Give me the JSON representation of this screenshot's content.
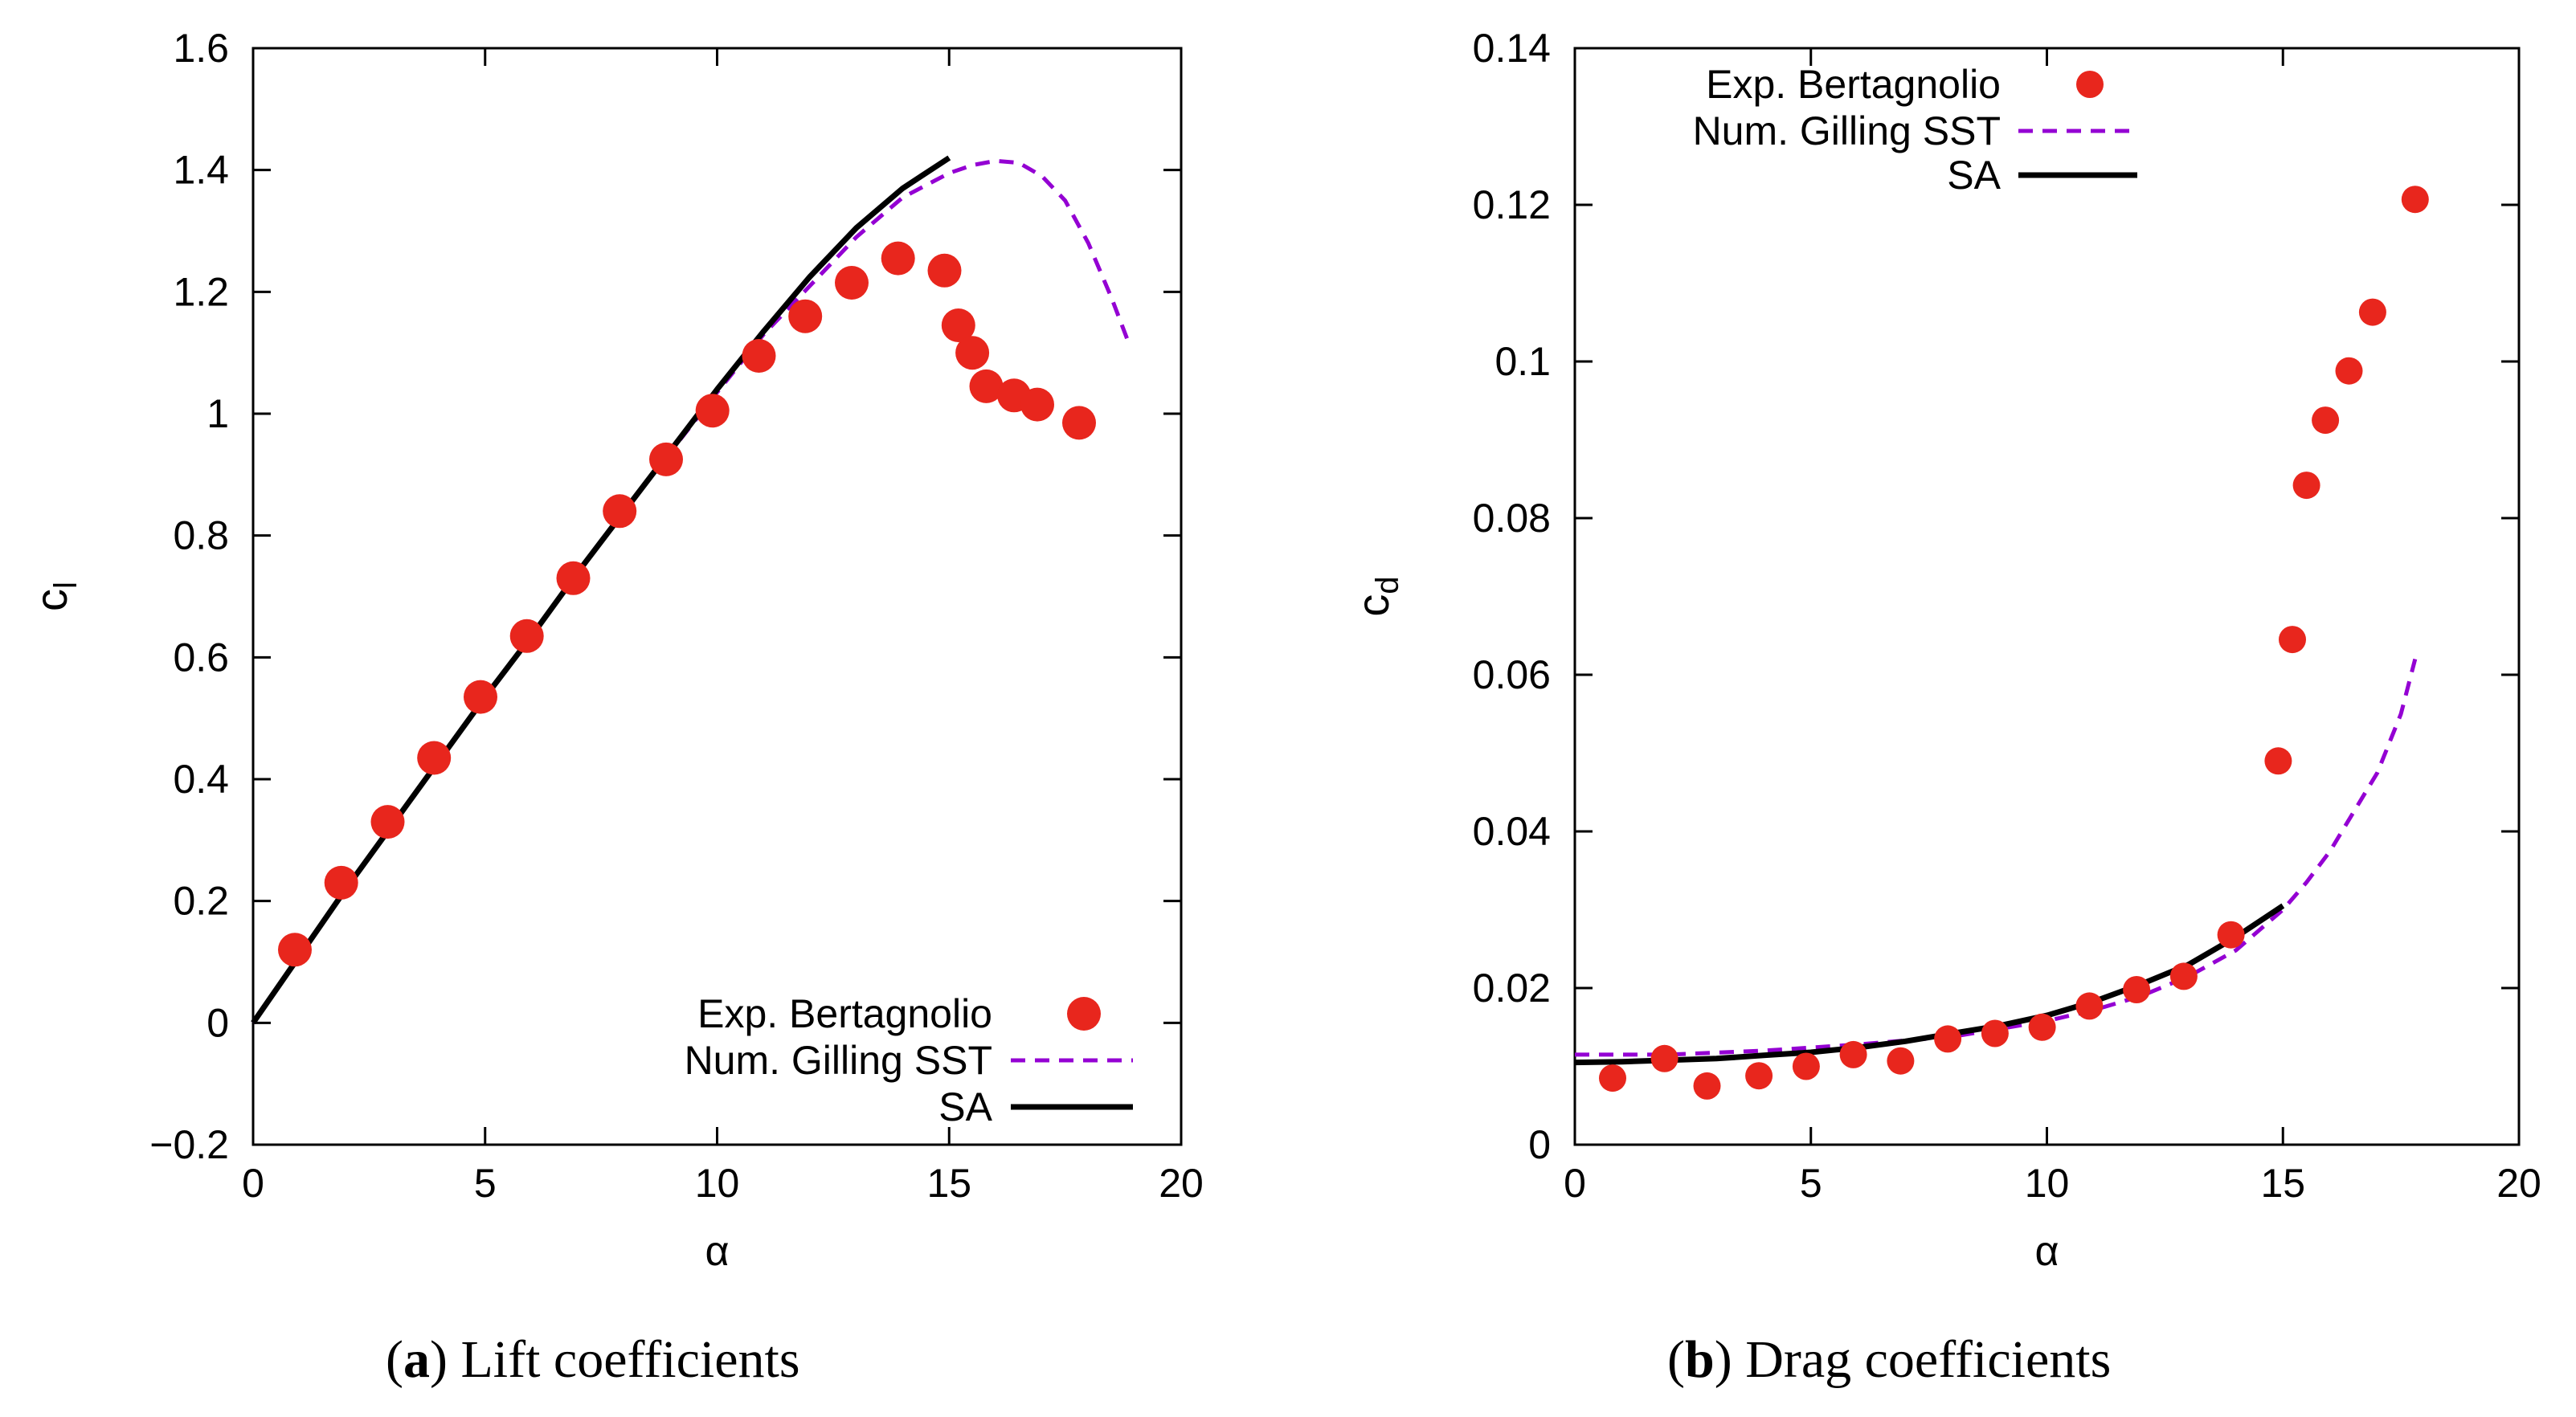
{
  "colors": {
    "exp": "#e8261d",
    "gilling": "#9400d3",
    "sa": "#000000"
  },
  "captions": {
    "a_label": "a",
    "a_text": " Lift coefficients",
    "b_label": "b",
    "b_text": " Drag coefficients"
  },
  "chart_data": [
    {
      "id": "lift",
      "type": "scatter",
      "title": "",
      "xlabel": "α",
      "ylabel": "c",
      "ylabel_sub": "l",
      "xlim": [
        0,
        20
      ],
      "ylim": [
        -0.2,
        1.6
      ],
      "xticks": [
        0,
        5,
        10,
        15,
        20
      ],
      "yticks": [
        -0.2,
        0,
        0.2,
        0.4,
        0.6,
        0.8,
        1,
        1.2,
        1.4,
        1.6
      ],
      "xtick_labels": [
        "0",
        "5",
        "10",
        "15",
        "20"
      ],
      "ytick_labels": [
        "−0.2",
        "0",
        "0.2",
        "0.4",
        "0.6",
        "0.8",
        "1",
        "1.2",
        "1.4",
        "1.6"
      ],
      "legend_position": "bottom-right",
      "legend": [
        "Exp. Bertagnolio",
        "Num. Gilling SST",
        "SA"
      ],
      "series": [
        {
          "name": "Exp. Bertagnolio",
          "style": "markers",
          "x": [
            0.9,
            1.9,
            2.9,
            3.9,
            4.9,
            5.9,
            6.9,
            7.9,
            8.9,
            9.9,
            10.9,
            11.9,
            12.9,
            13.9,
            14.9,
            15.2,
            15.5,
            15.8,
            16.4,
            16.9,
            17.8
          ],
          "y": [
            0.12,
            0.23,
            0.33,
            0.435,
            0.535,
            0.635,
            0.73,
            0.84,
            0.925,
            1.005,
            1.095,
            1.16,
            1.215,
            1.255,
            1.235,
            1.145,
            1.1,
            1.045,
            1.03,
            1.015,
            0.985
          ]
        },
        {
          "name": "Num. Gilling SST",
          "style": "dashed",
          "x": [
            0,
            2,
            4,
            6,
            8,
            10,
            11,
            12,
            13,
            14,
            15,
            15.5,
            16,
            16.5,
            17,
            17.5,
            18,
            18.5,
            18.9
          ],
          "y": [
            0,
            0.22,
            0.43,
            0.635,
            0.84,
            1.035,
            1.13,
            1.21,
            1.29,
            1.355,
            1.395,
            1.408,
            1.415,
            1.412,
            1.39,
            1.35,
            1.28,
            1.19,
            1.11
          ]
        },
        {
          "name": "SA",
          "style": "solid",
          "x": [
            0,
            1,
            2,
            3,
            4,
            5,
            6,
            7,
            8,
            9,
            10,
            11,
            12,
            13,
            14,
            15
          ],
          "y": [
            0,
            0.11,
            0.22,
            0.325,
            0.43,
            0.535,
            0.635,
            0.74,
            0.84,
            0.94,
            1.04,
            1.135,
            1.225,
            1.305,
            1.37,
            1.42
          ]
        }
      ]
    },
    {
      "id": "drag",
      "type": "scatter",
      "title": "",
      "xlabel": "α",
      "ylabel": "c",
      "ylabel_sub": "d",
      "xlim": [
        0,
        20
      ],
      "ylim": [
        0,
        0.14
      ],
      "xticks": [
        0,
        5,
        10,
        15,
        20
      ],
      "yticks": [
        0,
        0.02,
        0.04,
        0.06,
        0.08,
        0.1,
        0.12,
        0.14
      ],
      "xtick_labels": [
        "0",
        "5",
        "10",
        "15",
        "20"
      ],
      "ytick_labels": [
        "0",
        "0.02",
        "0.04",
        "0.06",
        "0.08",
        "0.1",
        "0.12",
        "0.14"
      ],
      "legend_position": "top-left",
      "legend": [
        "Exp. Bertagnolio",
        "Num. Gilling SST",
        "SA"
      ],
      "series": [
        {
          "name": "Exp. Bertagnolio",
          "style": "markers",
          "x": [
            0.8,
            1.9,
            2.8,
            3.9,
            4.9,
            5.9,
            6.9,
            7.9,
            8.9,
            9.9,
            10.9,
            11.9,
            12.9,
            13.9,
            14.9,
            15.2,
            15.5,
            15.9,
            16.4,
            16.9,
            17.8
          ],
          "y": [
            0.0085,
            0.011,
            0.0075,
            0.0088,
            0.01,
            0.0115,
            0.0107,
            0.0135,
            0.0142,
            0.015,
            0.0177,
            0.0198,
            0.0215,
            0.0268,
            0.049,
            0.0645,
            0.0842,
            0.0925,
            0.0988,
            0.1063,
            0.1207
          ]
        },
        {
          "name": "Num. Gilling SST",
          "style": "dashed",
          "x": [
            0,
            2,
            4,
            6,
            8,
            10,
            11,
            12,
            13,
            14,
            15,
            15.5,
            16,
            16.5,
            17,
            17.5,
            17.8
          ],
          "y": [
            0.0115,
            0.0115,
            0.012,
            0.0128,
            0.0138,
            0.0158,
            0.0172,
            0.019,
            0.0215,
            0.0248,
            0.03,
            0.0335,
            0.0375,
            0.0425,
            0.0475,
            0.055,
            0.062
          ]
        },
        {
          "name": "SA",
          "style": "solid",
          "x": [
            0,
            1,
            2,
            3,
            4,
            5,
            6,
            7,
            8,
            9,
            10,
            11,
            12,
            13,
            14,
            15
          ],
          "y": [
            0.0105,
            0.0106,
            0.0108,
            0.011,
            0.0114,
            0.0118,
            0.0124,
            0.0132,
            0.0142,
            0.0152,
            0.0165,
            0.0183,
            0.0205,
            0.023,
            0.0265,
            0.0305
          ]
        }
      ]
    }
  ]
}
